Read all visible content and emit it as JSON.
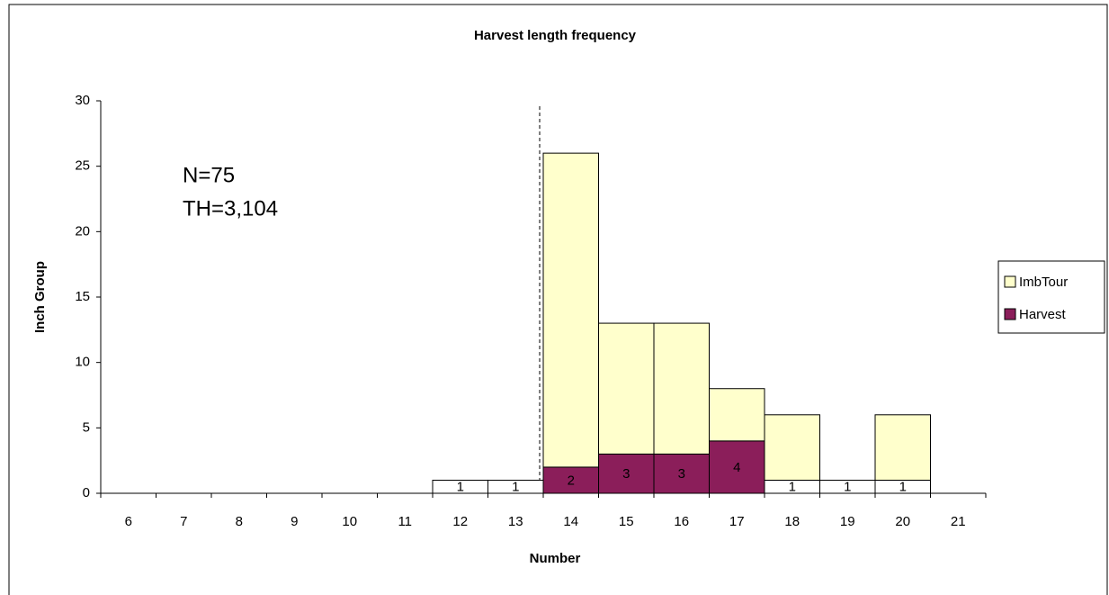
{
  "chart_data": {
    "type": "stacked-bar",
    "title": "Harvest length frequency",
    "x_label": "Number",
    "y_label": "Inch Group",
    "annotations": [
      "N=75",
      "TH=3,104"
    ],
    "categories": [
      "6",
      "7",
      "8",
      "9",
      "10",
      "11",
      "12",
      "13",
      "14",
      "15",
      "16",
      "17",
      "18",
      "19",
      "20",
      "21"
    ],
    "series": [
      {
        "name": "Harvest",
        "color": "#8B1E5A",
        "point_colors": [
          "#8B1E5A",
          "#8B1E5A",
          "#8B1E5A",
          "#8B1E5A",
          "#8B1E5A",
          "#8B1E5A",
          "#ffffff",
          "#ffffff",
          "#8B1E5A",
          "#8B1E5A",
          "#8B1E5A",
          "#8B1E5A",
          "#ffffff",
          "#ffffff",
          "#ffffff",
          "#8B1E5A"
        ],
        "values": [
          null,
          null,
          null,
          null,
          null,
          null,
          1,
          1,
          2,
          3,
          3,
          4,
          1,
          1,
          1,
          null
        ],
        "data_labels": true
      },
      {
        "name": "ImbTour",
        "color": "#FFFFCC",
        "values": [
          null,
          null,
          null,
          null,
          null,
          null,
          null,
          null,
          24,
          10,
          10,
          4,
          5,
          null,
          5,
          null
        ],
        "data_labels": false
      }
    ],
    "ylim": [
      0,
      30
    ],
    "yticks": [
      0,
      5,
      10,
      15,
      20,
      25,
      30
    ],
    "grid": false,
    "legend": "right"
  }
}
